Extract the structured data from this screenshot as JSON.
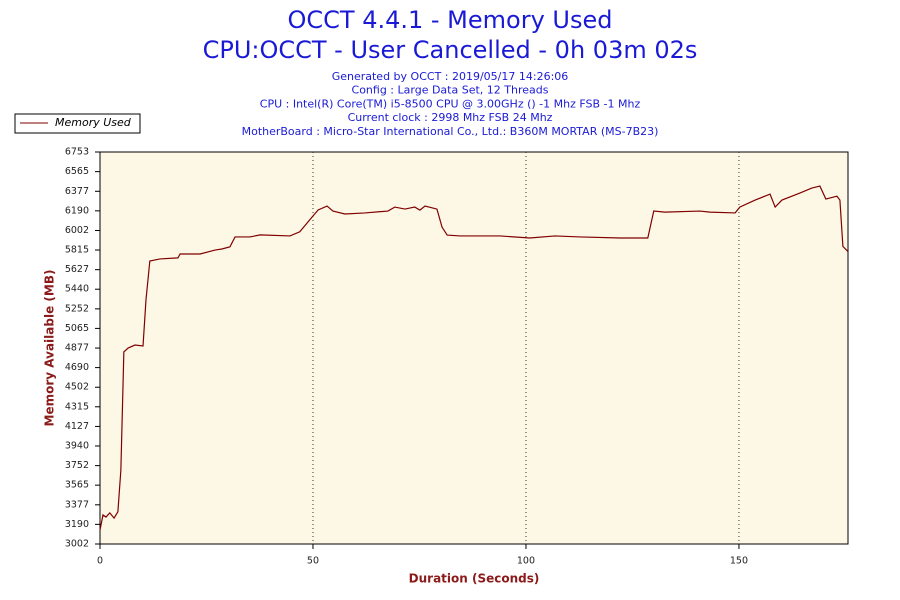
{
  "chart_data": {
    "type": "line",
    "title": "OCCT 4.4.1 - Memory Used",
    "subtitle": "CPU:OCCT - User Cancelled - 0h 03m 02s",
    "notes": [
      "Generated by OCCT : 2019/05/17 14:26:06",
      "Config : Large Data Set, 12 Threads",
      "CPU : Intel(R) Core(TM) i5-8500 CPU @ 3.00GHz () -1 Mhz FSB -1 Mhz",
      "Current clock : 2998 Mhz FSB 24 Mhz",
      "MotherBoard : Micro-Star International Co., Ltd.: B360M MORTAR (MS-7B23)"
    ],
    "x_label": "Duration (Seconds)",
    "y_label": "Memory Available (MB)",
    "x": [
      0,
      0.7,
      1.4,
      2.3,
      3.3,
      4.2,
      4.9,
      5.6,
      6.6,
      8.2,
      10.1,
      10.8,
      11.7,
      14.1,
      18.3,
      18.8,
      23.5,
      27,
      28.6,
      30.5,
      31.7,
      35.2,
      37.6,
      44.6,
      46.9,
      49.8,
      51.2,
      53.3,
      54.7,
      57.5,
      62.2,
      67.6,
      69.2,
      71.6,
      73.9,
      75.1,
      76.3,
      79.1,
      80.3,
      81.5,
      84.5,
      93.9,
      100.9,
      106.8,
      112.7,
      122.1,
      128.6,
      130,
      132.6,
      140.8,
      143.2,
      149.1,
      150.2,
      153.8,
      157.3,
      158.5,
      160.1,
      164.3,
      167.1,
      169,
      170.4,
      173,
      173.7,
      174.4,
      175.6
    ],
    "series": [
      {
        "name": "Memory Used",
        "color": "#800000",
        "values": [
          3136,
          3280,
          3260,
          3300,
          3250,
          3310,
          3710,
          4840,
          4877,
          4906,
          4897,
          5340,
          5710,
          5730,
          5740,
          5777,
          5777,
          5815,
          5825,
          5845,
          5940,
          5940,
          5960,
          5950,
          5990,
          6131,
          6198,
          6236,
          6188,
          6160,
          6170,
          6188,
          6226,
          6207,
          6226,
          6197,
          6236,
          6207,
          6034,
          5958,
          5950,
          5950,
          5930,
          5950,
          5940,
          5930,
          5930,
          6188,
          6178,
          6188,
          6178,
          6170,
          6226,
          6293,
          6350,
          6226,
          6293,
          6360,
          6408,
          6427,
          6303,
          6330,
          6293,
          5850,
          5800
        ]
      }
    ],
    "xlim": [
      0,
      175.6
    ],
    "xticks": [
      0,
      50,
      100,
      150
    ],
    "ylim": [
      3002,
      6753
    ],
    "yticks": [
      3002,
      3190,
      3377,
      3565,
      3752,
      3940,
      4127,
      4315,
      4502,
      4690,
      4877,
      5065,
      5252,
      5440,
      5627,
      5815,
      6002,
      6190,
      6377,
      6565,
      6753
    ],
    "grid": true,
    "legend": "top-left"
  }
}
